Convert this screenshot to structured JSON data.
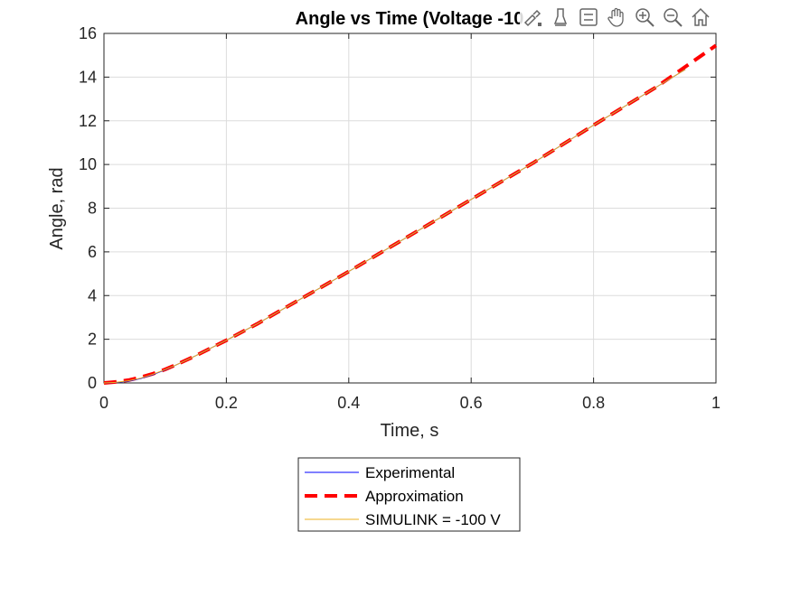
{
  "chart_data": {
    "type": "line",
    "title": "Angle vs Time (Voltage -10",
    "xlabel": "Time, s",
    "ylabel": "Angle, rad",
    "xlim": [
      0,
      1
    ],
    "ylim": [
      0,
      16
    ],
    "xticks": [
      "0",
      "0.2",
      "0.4",
      "0.6",
      "0.8",
      "1"
    ],
    "yticks": [
      "0",
      "2",
      "4",
      "6",
      "8",
      "10",
      "12",
      "14",
      "16"
    ],
    "grid": true,
    "legend_position": "bottom-outside",
    "series": [
      {
        "name": "Experimental",
        "color": "#0000ff",
        "style": "solid",
        "x": [
          0,
          0.02,
          0.04,
          0.06,
          0.08,
          0.1,
          0.12,
          0.15,
          0.2,
          0.25,
          0.3,
          0.4,
          0.5,
          0.6,
          0.7,
          0.8,
          0.9,
          0.95
        ],
        "y": [
          0,
          0.02,
          0.08,
          0.2,
          0.38,
          0.6,
          0.85,
          1.25,
          1.95,
          2.7,
          3.5,
          5.1,
          6.75,
          8.4,
          10.05,
          11.8,
          13.5,
          14.35
        ]
      },
      {
        "name": "Approximation",
        "color": "#ff0000",
        "style": "dashed",
        "x": [
          0,
          0.02,
          0.04,
          0.06,
          0.08,
          0.1,
          0.12,
          0.15,
          0.2,
          0.25,
          0.3,
          0.4,
          0.5,
          0.6,
          0.7,
          0.8,
          0.9,
          1.0
        ],
        "y": [
          0,
          0.05,
          0.13,
          0.26,
          0.42,
          0.62,
          0.86,
          1.25,
          1.95,
          2.7,
          3.5,
          5.1,
          6.75,
          8.4,
          10.05,
          11.8,
          13.5,
          15.45
        ]
      },
      {
        "name": "SIMULINK = -100 V",
        "color": "#edb120",
        "style": "solid",
        "x": [
          0,
          0.02,
          0.04,
          0.06,
          0.08,
          0.1,
          0.12,
          0.15,
          0.2,
          0.25,
          0.3,
          0.4,
          0.5,
          0.6,
          0.7,
          0.8,
          0.9,
          0.95
        ],
        "y": [
          0,
          0.03,
          0.1,
          0.22,
          0.4,
          0.61,
          0.85,
          1.25,
          1.95,
          2.7,
          3.5,
          5.1,
          6.75,
          8.4,
          10.05,
          11.8,
          13.5,
          14.35
        ]
      }
    ]
  },
  "toolbar": {
    "icons": [
      "brush-icon",
      "data-tips-icon",
      "legend-icon",
      "pan-icon",
      "zoom-in-icon",
      "zoom-out-icon",
      "home-icon"
    ]
  }
}
